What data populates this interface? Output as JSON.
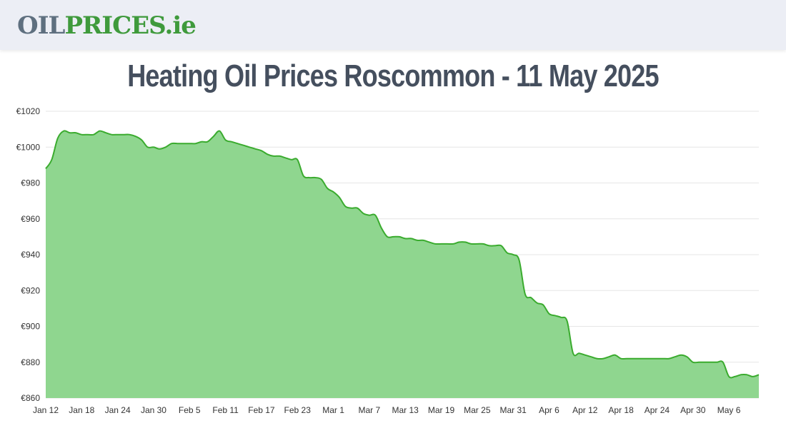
{
  "site": {
    "logo": {
      "part1": "OIL",
      "part2": "PRICES",
      "part3": ".ie"
    }
  },
  "page": {
    "title": "Heating Oil Prices Roscommon - 11 May 2025"
  },
  "colors": {
    "line": "#3aab2e",
    "fill": "#8fd68f",
    "grid": "#e6e6e6",
    "text": "#454f5e"
  },
  "chart_data": {
    "type": "area",
    "title": "Heating Oil Prices Roscommon - 11 May 2025",
    "xlabel": "",
    "ylabel": "",
    "ylim": [
      860,
      1020
    ],
    "yticks": [
      860,
      880,
      900,
      920,
      940,
      960,
      980,
      1000,
      1020
    ],
    "ytick_labels": [
      "€860",
      "€880",
      "€900",
      "€920",
      "€940",
      "€960",
      "€980",
      "€1000",
      "€1020"
    ],
    "xticks": [
      "Jan 12",
      "Jan 18",
      "Jan 24",
      "Jan 30",
      "Feb 5",
      "Feb 11",
      "Feb 17",
      "Feb 23",
      "Mar 1",
      "Mar 7",
      "Mar 13",
      "Mar 19",
      "Mar 25",
      "Mar 31",
      "Apr 6",
      "Apr 12",
      "Apr 18",
      "Apr 24",
      "Apr 30",
      "May 6"
    ],
    "xlim_days": [
      0,
      119
    ],
    "grid": true,
    "legend": "none",
    "series": [
      {
        "x": [
          0,
          1,
          2,
          3,
          4,
          5,
          6,
          7,
          8,
          9,
          10,
          11,
          12,
          13,
          14,
          15,
          16,
          17,
          18,
          19,
          20,
          21,
          22,
          23,
          24,
          25,
          26,
          27,
          28,
          29,
          30,
          31,
          32,
          33,
          34,
          35,
          36,
          37,
          38,
          39,
          40,
          41,
          42,
          43,
          44,
          45,
          46,
          47,
          48,
          49,
          50,
          51,
          52,
          53,
          54,
          55,
          56,
          57,
          58,
          59,
          60,
          61,
          62,
          63,
          64,
          65,
          66,
          67,
          68,
          69,
          70,
          71,
          72,
          73,
          74,
          75,
          76,
          77,
          78,
          79,
          80,
          81,
          82,
          83,
          84,
          85,
          86,
          87,
          88,
          89,
          90,
          91,
          92,
          93,
          94,
          95,
          96,
          97,
          98,
          99,
          100,
          101,
          102,
          103,
          104,
          105,
          106,
          107,
          108,
          109,
          110,
          111,
          112,
          113,
          114,
          115,
          116,
          117,
          118,
          119
        ],
        "y": [
          988,
          993,
          1005,
          1009,
          1008,
          1008,
          1007,
          1007,
          1007,
          1009,
          1008,
          1007,
          1007,
          1007,
          1007,
          1006,
          1004,
          1000,
          1000,
          999,
          1000,
          1002,
          1002,
          1002,
          1002,
          1002,
          1003,
          1003,
          1006,
          1009,
          1004,
          1003,
          1002,
          1001,
          1000,
          999,
          998,
          996,
          995,
          995,
          994,
          993,
          993,
          984,
          983,
          983,
          982,
          977,
          975,
          972,
          967,
          966,
          966,
          963,
          962,
          962,
          955,
          950,
          950,
          950,
          949,
          949,
          948,
          948,
          947,
          946,
          946,
          946,
          946,
          947,
          947,
          946,
          946,
          946,
          945,
          945,
          945,
          941,
          940,
          937,
          918,
          916,
          913,
          912,
          907,
          906,
          905,
          903,
          885,
          885,
          884,
          883,
          882,
          882,
          883,
          884,
          882,
          882,
          882,
          882,
          882,
          882,
          882,
          882,
          882,
          883,
          884,
          883,
          880,
          880,
          880,
          880,
          880,
          880,
          872,
          872,
          873,
          873,
          872,
          873
        ]
      }
    ]
  }
}
